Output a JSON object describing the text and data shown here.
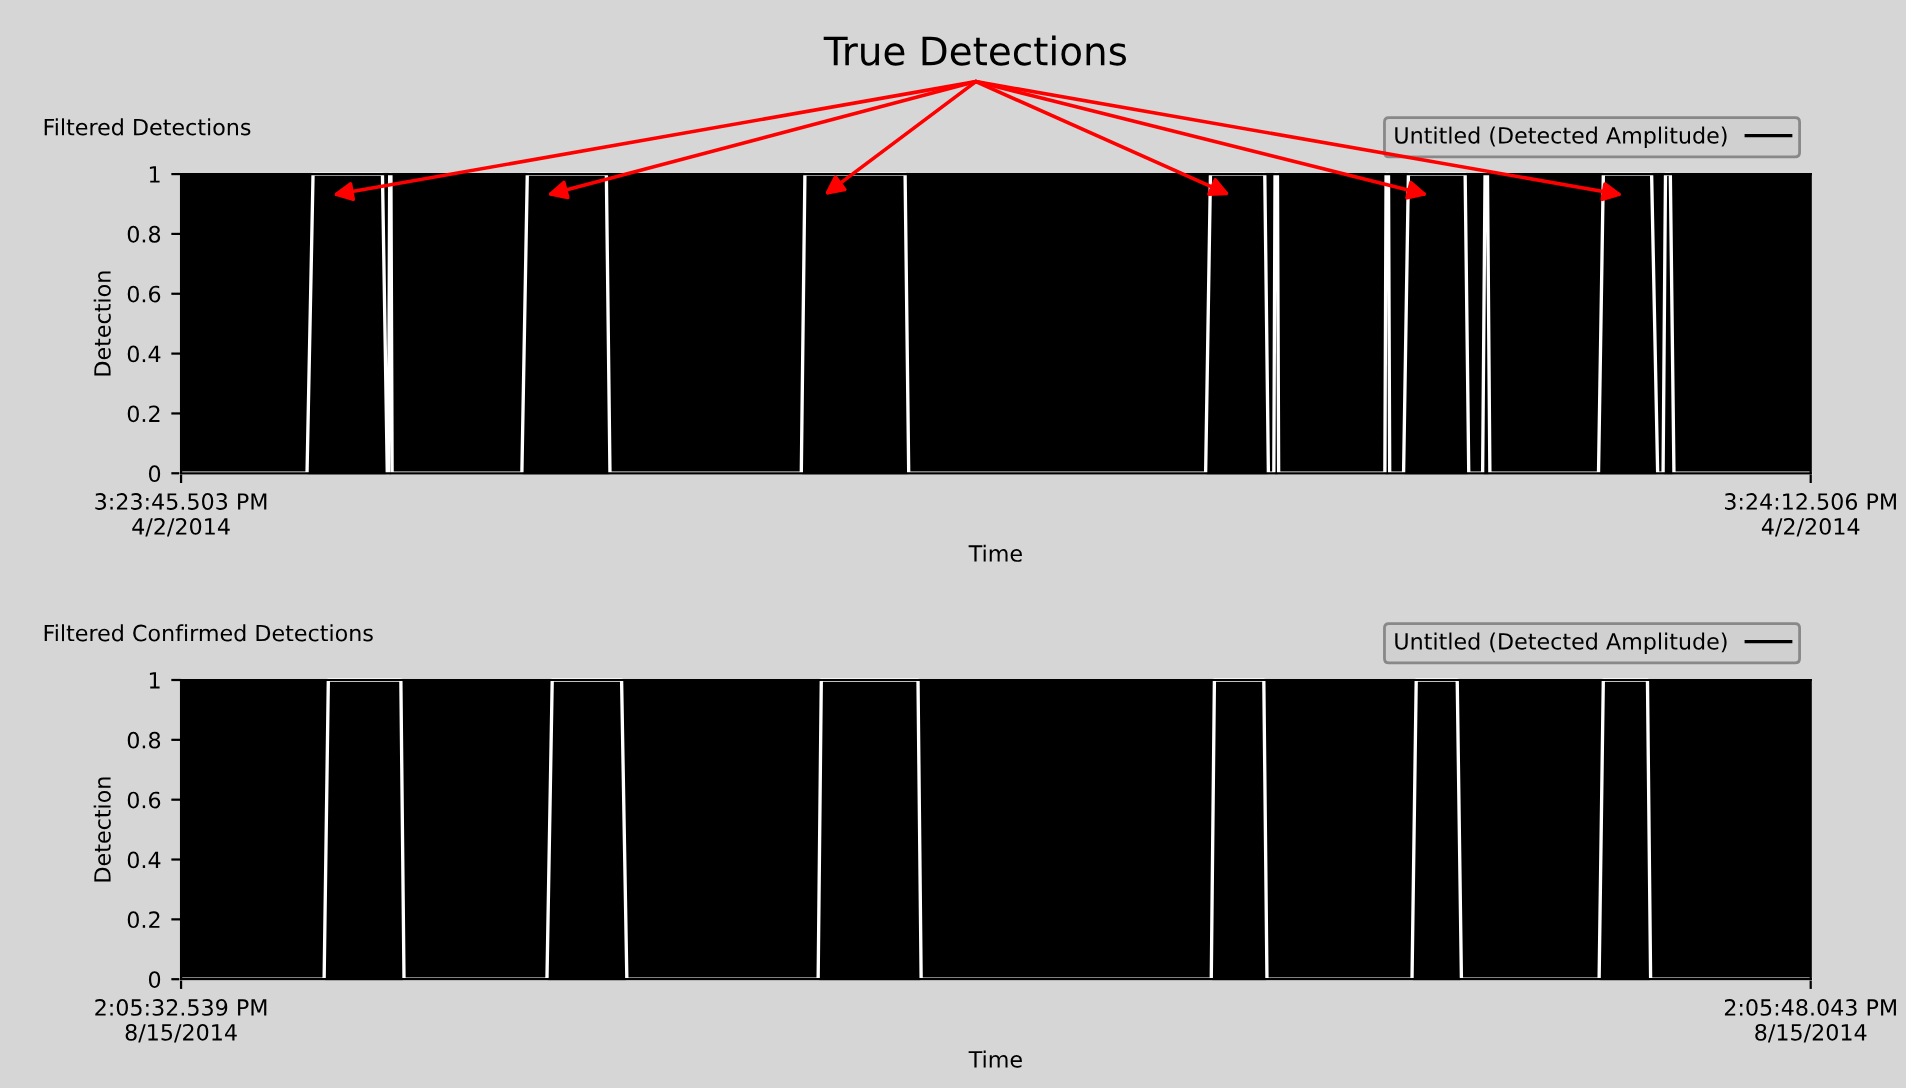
{
  "chart_data": [
    {
      "type": "line",
      "title": "Filtered Detections",
      "xlabel": "Time",
      "ylabel": "Detection",
      "annotations": [
        "True Detections"
      ],
      "series": [
        {
          "name": "Untitled (Detected Amplitude)",
          "color": "#ffffff",
          "x": [
            "2014-04-02T15:23:45.503",
            "2014-04-02T15:23:47.59",
            "2014-04-02T15:23:47.69",
            "2014-04-02T15:23:48.84",
            "2014-04-02T15:23:48.92",
            "2014-04-02T15:23:48.94",
            "2014-04-02T15:23:48.96",
            "2014-04-02T15:23:48.98",
            "2014-04-02T15:23:49.00",
            "2014-04-02T15:23:51.15",
            "2014-04-02T15:23:51.24",
            "2014-04-02T15:23:52.55",
            "2014-04-02T15:23:52.61",
            "2014-04-02T15:23:55.78",
            "2014-04-02T15:23:55.84",
            "2014-04-02T15:23:57.50",
            "2014-04-02T15:23:57.56",
            "2014-04-02T15:24:02.48",
            "2014-04-02T15:24:02.56",
            "2014-04-02T15:24:03.46",
            "2014-04-02T15:24:03.52",
            "2014-04-02T15:24:03.61",
            "2014-04-02T15:24:03.63",
            "2014-04-02T15:24:03.67",
            "2014-04-02T15:24:03.69",
            "2014-04-02T15:24:05.45",
            "2014-04-02T15:24:05.47",
            "2014-04-02T15:24:05.51",
            "2014-04-02T15:24:05.53",
            "2014-04-02T15:24:05.76",
            "2014-04-02T15:24:05.84",
            "2014-04-02T15:24:06.78",
            "2014-04-02T15:24:06.84",
            "2014-04-02T15:24:07.07",
            "2014-04-02T15:24:07.11",
            "2014-04-02T15:24:07.15",
            "2014-04-02T15:24:07.19",
            "2014-04-02T15:24:08.99",
            "2014-04-02T15:24:09.07",
            "2014-04-02T15:24:09.87",
            "2014-04-02T15:24:09.97",
            "2014-04-02T15:24:10.06",
            "2014-04-02T15:24:10.10",
            "2014-04-02T15:24:10.18",
            "2014-04-02T15:24:10.24",
            "2014-04-02T15:24:12.506"
          ],
          "values": [
            0,
            0,
            1,
            1,
            0,
            0,
            1,
            1,
            0,
            0,
            1,
            1,
            0,
            0,
            1,
            1,
            0,
            0,
            1,
            1,
            0,
            0,
            1,
            1,
            0,
            0,
            1,
            1,
            0,
            0,
            1,
            1,
            0,
            0,
            1,
            1,
            0,
            0,
            1,
            1,
            0,
            0,
            1,
            1,
            0,
            0
          ]
        }
      ],
      "xlim": [
        "2014-04-02T15:23:45.503",
        "2014-04-02T15:24:12.506"
      ],
      "xticks": [
        {
          "value": "2014-04-02T15:23:45.503",
          "label": "3:23:45.503 PM\n4/2/2014"
        },
        {
          "value": "2014-04-02T15:24:12.506",
          "label": "3:24:12.506 PM\n4/2/2014"
        }
      ],
      "ylim": [
        0,
        1
      ],
      "yticks": [
        0,
        0.2,
        0.4,
        0.6,
        0.8,
        1
      ],
      "grid": false,
      "legend": "top right"
    },
    {
      "type": "line",
      "title": "Filtered Confirmed Detections",
      "xlabel": "Time",
      "ylabel": "Detection",
      "series": [
        {
          "name": "Untitled (Detected Amplitude)",
          "color": "#ffffff",
          "x": [
            "2014-08-15T14:05:32.539",
            "2014-08-15T14:05:33.90",
            "2014-08-15T14:05:33.94",
            "2014-08-15T14:05:34.63",
            "2014-08-15T14:05:34.66",
            "2014-08-15T14:05:36.02",
            "2014-08-15T14:05:36.07",
            "2014-08-15T14:05:36.73",
            "2014-08-15T14:05:36.78",
            "2014-08-15T14:05:38.60",
            "2014-08-15T14:05:38.63",
            "2014-08-15T14:05:39.55",
            "2014-08-15T14:05:39.58",
            "2014-08-15T14:05:42.34",
            "2014-08-15T14:05:42.37",
            "2014-08-15T14:05:42.84",
            "2014-08-15T14:05:42.87",
            "2014-08-15T14:05:44.25",
            "2014-08-15T14:05:44.29",
            "2014-08-15T14:05:44.68",
            "2014-08-15T14:05:44.72",
            "2014-08-15T14:05:46.03",
            "2014-08-15T14:05:46.07",
            "2014-08-15T14:05:46.49",
            "2014-08-15T14:05:46.52",
            "2014-08-15T14:05:48.043"
          ],
          "values": [
            0,
            0,
            1,
            1,
            0,
            0,
            1,
            1,
            0,
            0,
            1,
            1,
            0,
            0,
            1,
            1,
            0,
            0,
            1,
            1,
            0,
            0,
            1,
            1,
            0,
            0
          ]
        }
      ],
      "xlim": [
        "2014-08-15T14:05:32.539",
        "2014-08-15T14:05:48.043"
      ],
      "xticks": [
        {
          "value": "2014-08-15T14:05:32.539",
          "label": "2:05:32.539 PM\n8/15/2014"
        },
        {
          "value": "2014-08-15T14:05:48.043",
          "label": "2:05:48.043 PM\n8/15/2014"
        }
      ],
      "ylim": [
        0,
        1
      ],
      "yticks": [
        0,
        0.2,
        0.4,
        0.6,
        0.8,
        1
      ],
      "grid": false,
      "legend": "top right"
    }
  ]
}
